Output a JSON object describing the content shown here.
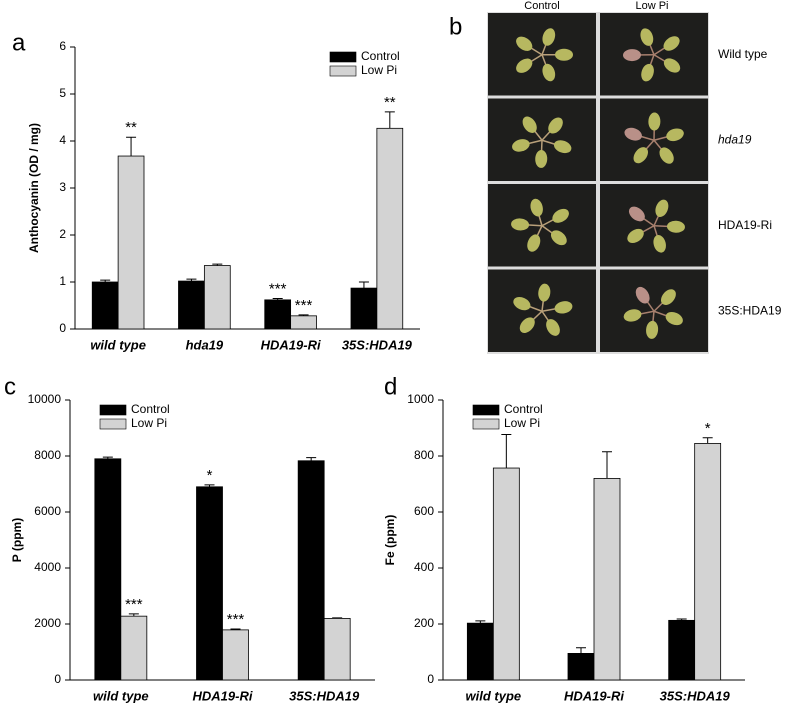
{
  "chart_data": [
    {
      "type": "bar",
      "panel": "a",
      "ylabel": "Anthocyanin (OD / mg)",
      "categories": [
        "wild type",
        "hda19",
        "HDA19-Ri",
        "35S:HDA19"
      ],
      "series": [
        {
          "name": "Control",
          "color": "#000000",
          "values": [
            1.0,
            1.02,
            0.62,
            0.87
          ],
          "errors": [
            0.04,
            0.04,
            0.03,
            0.13
          ],
          "significance": [
            null,
            null,
            "***",
            null
          ]
        },
        {
          "name": "Low Pi",
          "color": "#d3d3d3",
          "values": [
            3.68,
            1.35,
            0.28,
            4.27
          ],
          "errors": [
            0.4,
            0.03,
            0.02,
            0.35
          ],
          "significance": [
            "**",
            null,
            "***",
            "**"
          ]
        }
      ],
      "ylim": [
        0,
        6
      ],
      "yticks": [
        0,
        1,
        2,
        3,
        4,
        5,
        6
      ],
      "legend": "upper right"
    },
    {
      "type": "bar",
      "panel": "c",
      "ylabel": "P (ppm)",
      "categories": [
        "wild type",
        "HDA19-Ri",
        "35S:HDA19"
      ],
      "series": [
        {
          "name": "Control",
          "color": "#000000",
          "values": [
            7900,
            6900,
            7830
          ],
          "errors": [
            60,
            70,
            110
          ],
          "significance": [
            null,
            "*",
            null
          ]
        },
        {
          "name": "Low Pi",
          "color": "#d3d3d3",
          "values": [
            2280,
            1790,
            2200
          ],
          "errors": [
            80,
            30,
            20
          ],
          "significance": [
            "***",
            "***",
            null
          ]
        }
      ],
      "ylim": [
        0,
        10000
      ],
      "yticks": [
        0,
        2000,
        4000,
        6000,
        8000,
        10000
      ],
      "legend": "upper left"
    },
    {
      "type": "bar",
      "panel": "d",
      "ylabel": "Fe (ppm)",
      "categories": [
        "wild type",
        "HDA19-Ri",
        "35S:HDA19"
      ],
      "series": [
        {
          "name": "Control",
          "color": "#000000",
          "values": [
            203,
            95,
            213
          ],
          "errors": [
            8,
            20,
            5
          ],
          "significance": [
            null,
            null,
            null
          ]
        },
        {
          "name": "Low Pi",
          "color": "#d3d3d3",
          "values": [
            757,
            720,
            845
          ],
          "errors": [
            120,
            95,
            20
          ],
          "significance": [
            null,
            null,
            "*"
          ]
        }
      ],
      "ylim": [
        0,
        1000
      ],
      "yticks": [
        0,
        200,
        400,
        600,
        800,
        1000
      ],
      "legend": "upper left"
    }
  ],
  "photo_panel": {
    "panel": "b",
    "columns": [
      "Control",
      "Low Pi"
    ],
    "rows": [
      "Wild type",
      "hda19",
      "HDA19-Ri",
      "35S:HDA19"
    ]
  }
}
